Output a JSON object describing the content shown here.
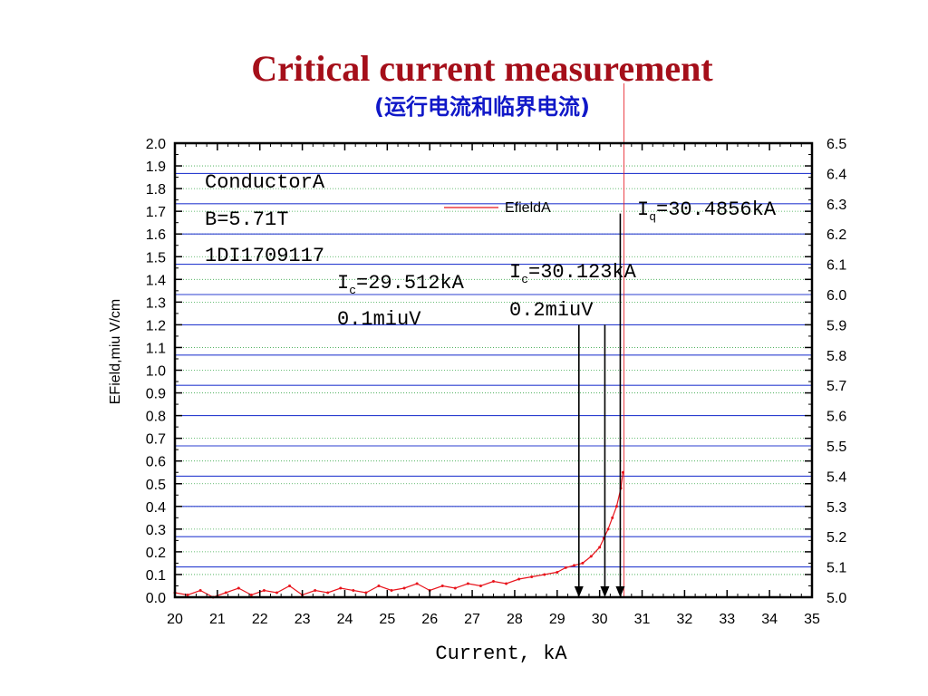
{
  "title": "Critical current measurement",
  "subtitle": "(运行电流和临界电流)",
  "chart_data": {
    "type": "line",
    "xlabel": "Current, kA",
    "ylabel": "EField,miu V/cm",
    "xlim": [
      20,
      35
    ],
    "ylim": [
      0.0,
      2.0
    ],
    "y2lim": [
      5.0,
      6.5
    ],
    "x_ticks": [
      "20",
      "21",
      "22",
      "23",
      "24",
      "25",
      "26",
      "27",
      "28",
      "29",
      "30",
      "31",
      "32",
      "33",
      "34",
      "35"
    ],
    "y_ticks": [
      "0.0",
      "0.1",
      "0.2",
      "0.3",
      "0.4",
      "0.5",
      "0.6",
      "0.7",
      "0.8",
      "0.9",
      "1.0",
      "1.1",
      "1.2",
      "1.3",
      "1.4",
      "1.5",
      "1.6",
      "1.7",
      "1.8",
      "1.9",
      "2.0"
    ],
    "y2_ticks": [
      "5.0",
      "5.1",
      "5.2",
      "5.3",
      "5.4",
      "5.5",
      "5.6",
      "5.7",
      "5.8",
      "5.9",
      "6.0",
      "6.1",
      "6.2",
      "6.3",
      "6.4",
      "6.5"
    ],
    "grid": true,
    "legend": "top-center",
    "series": [
      {
        "name": "EfieldA",
        "color": "#e8141c",
        "x": [
          20.0,
          20.3,
          20.6,
          20.9,
          21.2,
          21.5,
          21.8,
          22.1,
          22.4,
          22.7,
          23.0,
          23.3,
          23.6,
          23.9,
          24.2,
          24.5,
          24.8,
          25.1,
          25.4,
          25.7,
          26.0,
          26.3,
          26.6,
          26.9,
          27.2,
          27.5,
          27.8,
          28.1,
          28.4,
          28.7,
          29.0,
          29.2,
          29.4,
          29.6,
          29.8,
          30.0,
          30.1,
          30.2,
          30.3,
          30.4,
          30.5,
          30.55
        ],
        "values": [
          0.02,
          0.01,
          0.03,
          0.0,
          0.02,
          0.04,
          0.01,
          0.03,
          0.02,
          0.05,
          0.01,
          0.03,
          0.02,
          0.04,
          0.03,
          0.02,
          0.05,
          0.03,
          0.04,
          0.06,
          0.03,
          0.05,
          0.04,
          0.06,
          0.05,
          0.07,
          0.06,
          0.08,
          0.09,
          0.1,
          0.11,
          0.13,
          0.14,
          0.15,
          0.18,
          0.22,
          0.26,
          0.3,
          0.35,
          0.4,
          0.48,
          0.55
        ]
      }
    ],
    "arrows": [
      {
        "x": 29.512,
        "from_y": 1.2,
        "to_y": 0.0
      },
      {
        "x": 30.123,
        "from_y": 1.2,
        "to_y": 0.0
      },
      {
        "x": 30.4856,
        "from_y": 1.69,
        "to_y": 0.0
      }
    ],
    "annotations": {
      "conductor": [
        "ConductorA",
        "B=5.71T",
        "1DI1709117"
      ],
      "ic1": {
        "label": "I",
        "sub": "c",
        "value": "=29.512kA",
        "line2": "0.1miuV"
      },
      "ic2": {
        "label": "I",
        "sub": "c",
        "value": "=30.123kA",
        "line2": "0.2miuV"
      },
      "iq": {
        "label": "I",
        "sub": "q",
        "value": "=30.4856kA"
      }
    }
  }
}
